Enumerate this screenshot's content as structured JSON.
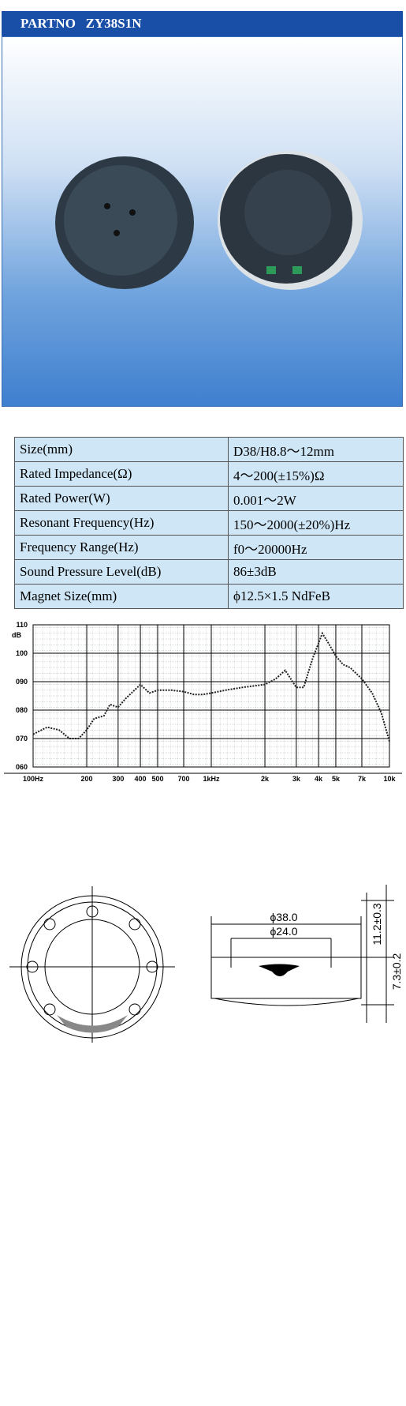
{
  "header": {
    "title": "PARTNO   ZY38S1N"
  },
  "specs": {
    "rows": [
      [
        "Size(mm)",
        "D38/H8.8～12mm"
      ],
      [
        "Rated Impedance(Ω)",
        "4～200(±15%)Ω"
      ],
      [
        "Rated Power(W)",
        "0.001～2W"
      ],
      [
        "Resonant Frequency(Hz)",
        "150～2000(±20%)Hz"
      ],
      [
        "Frequency Range(Hz)",
        "f0～20000Hz"
      ],
      [
        "Sound Pressure Level(dB)",
        "86±3dB"
      ],
      [
        "Magnet Size(mm)",
        "ϕ12.5×1.5 NdFeB"
      ]
    ]
  },
  "chart_data": {
    "type": "line",
    "y_label": "dB",
    "log_x": true,
    "grid": true,
    "color": "#222222",
    "x": [
      100,
      120,
      140,
      160,
      180,
      200,
      220,
      250,
      270,
      300,
      330,
      400,
      450,
      500,
      600,
      700,
      800,
      900,
      1000,
      1200,
      1500,
      2000,
      2300,
      2600,
      3000,
      3300,
      3700,
      4200,
      4600,
      5000,
      5500,
      6000,
      7000,
      8000,
      9000,
      10000
    ],
    "values": [
      71.5,
      74,
      73,
      70,
      70,
      73,
      77,
      78,
      82,
      81,
      84,
      89,
      86,
      87,
      87,
      86.5,
      85.5,
      85.5,
      86,
      87,
      88,
      89,
      91,
      94,
      88,
      88,
      98,
      107,
      103,
      99,
      96,
      95,
      91,
      86,
      79,
      69
    ],
    "xlim": [
      100,
      10000
    ],
    "xticks": [
      {
        "value": 100,
        "label": "100Hz"
      },
      200,
      300,
      400,
      500,
      700,
      {
        "value": 1000,
        "label": "1kHz"
      },
      {
        "value": 2000,
        "label": "2k"
      },
      {
        "value": 3000,
        "label": "3k"
      },
      {
        "value": 4000,
        "label": "4k"
      },
      {
        "value": 5000,
        "label": "5k"
      },
      {
        "value": 7000,
        "label": "7k"
      },
      {
        "value": 10000,
        "label": "10k"
      }
    ],
    "ylim": [
      60,
      110
    ],
    "yticks": [
      {
        "value": 60,
        "label": "060"
      },
      {
        "value": 70,
        "label": "070"
      },
      {
        "value": 80,
        "label": "080"
      },
      {
        "value": 90,
        "label": "090"
      },
      100,
      110
    ]
  },
  "drawing": {
    "outer_diameter": "ϕ38.0",
    "inner_diameter": "ϕ24.0",
    "height_total": "11.2±0.3",
    "height_body": "7.3±0.2"
  }
}
